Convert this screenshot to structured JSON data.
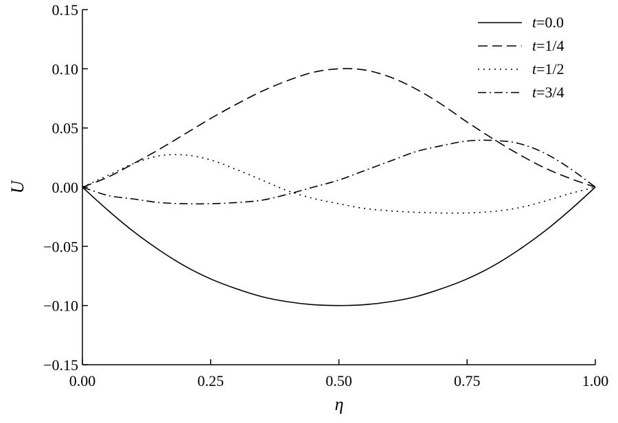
{
  "chart_data": {
    "type": "line",
    "xlabel": "η",
    "ylabel": "U",
    "xlim": [
      0,
      1
    ],
    "ylim": [
      -0.15,
      0.15
    ],
    "x_ticks": [
      "0.00",
      "0.25",
      "0.50",
      "0.75",
      "1.00"
    ],
    "y_ticks": [
      "0.15",
      "0.10",
      "0.05",
      "0.00",
      "−0.05",
      "−0.10",
      "−0.15"
    ],
    "grid": false,
    "legend_position": "top-right",
    "x": [
      0,
      0.05,
      0.1,
      0.15,
      0.2,
      0.25,
      0.3,
      0.35,
      0.4,
      0.45,
      0.5,
      0.55,
      0.6,
      0.65,
      0.7,
      0.75,
      0.8,
      0.85,
      0.9,
      0.95,
      1.0
    ],
    "series": [
      {
        "legend_var": "t",
        "legend_value": "=0.0",
        "dash": "solid",
        "values": [
          0,
          -0.0196,
          -0.0376,
          -0.0532,
          -0.0667,
          -0.0775,
          -0.0858,
          -0.0925,
          -0.0968,
          -0.0993,
          -0.1,
          -0.0993,
          -0.0968,
          -0.0925,
          -0.0858,
          -0.0775,
          -0.0667,
          -0.0532,
          -0.0376,
          -0.0196,
          0
        ]
      },
      {
        "legend_var": "t",
        "legend_value": "=1/4",
        "dash": "dashed",
        "values": [
          0,
          0.0085,
          0.02,
          0.032,
          0.045,
          0.058,
          0.07,
          0.081,
          0.09,
          0.097,
          0.1,
          0.099,
          0.093,
          0.083,
          0.07,
          0.055,
          0.041,
          0.028,
          0.0165,
          0.0075,
          0
        ]
      },
      {
        "legend_var": "t",
        "legend_value": "=1/2",
        "dash": "dotted",
        "values": [
          0,
          0.01,
          0.02,
          0.0265,
          0.0272,
          0.023,
          0.015,
          0.006,
          -0.003,
          -0.0095,
          -0.014,
          -0.018,
          -0.02,
          -0.0212,
          -0.0218,
          -0.0218,
          -0.0205,
          -0.0175,
          -0.012,
          -0.0055,
          0
        ]
      },
      {
        "legend_var": "t",
        "legend_value": "=3/4",
        "dash": "dashdot",
        "values": [
          0,
          -0.007,
          -0.01,
          -0.013,
          -0.014,
          -0.014,
          -0.013,
          -0.011,
          -0.006,
          0.0,
          0.006,
          0.014,
          0.022,
          0.03,
          0.035,
          0.039,
          0.0395,
          0.037,
          0.029,
          0.016,
          0
        ]
      }
    ]
  }
}
